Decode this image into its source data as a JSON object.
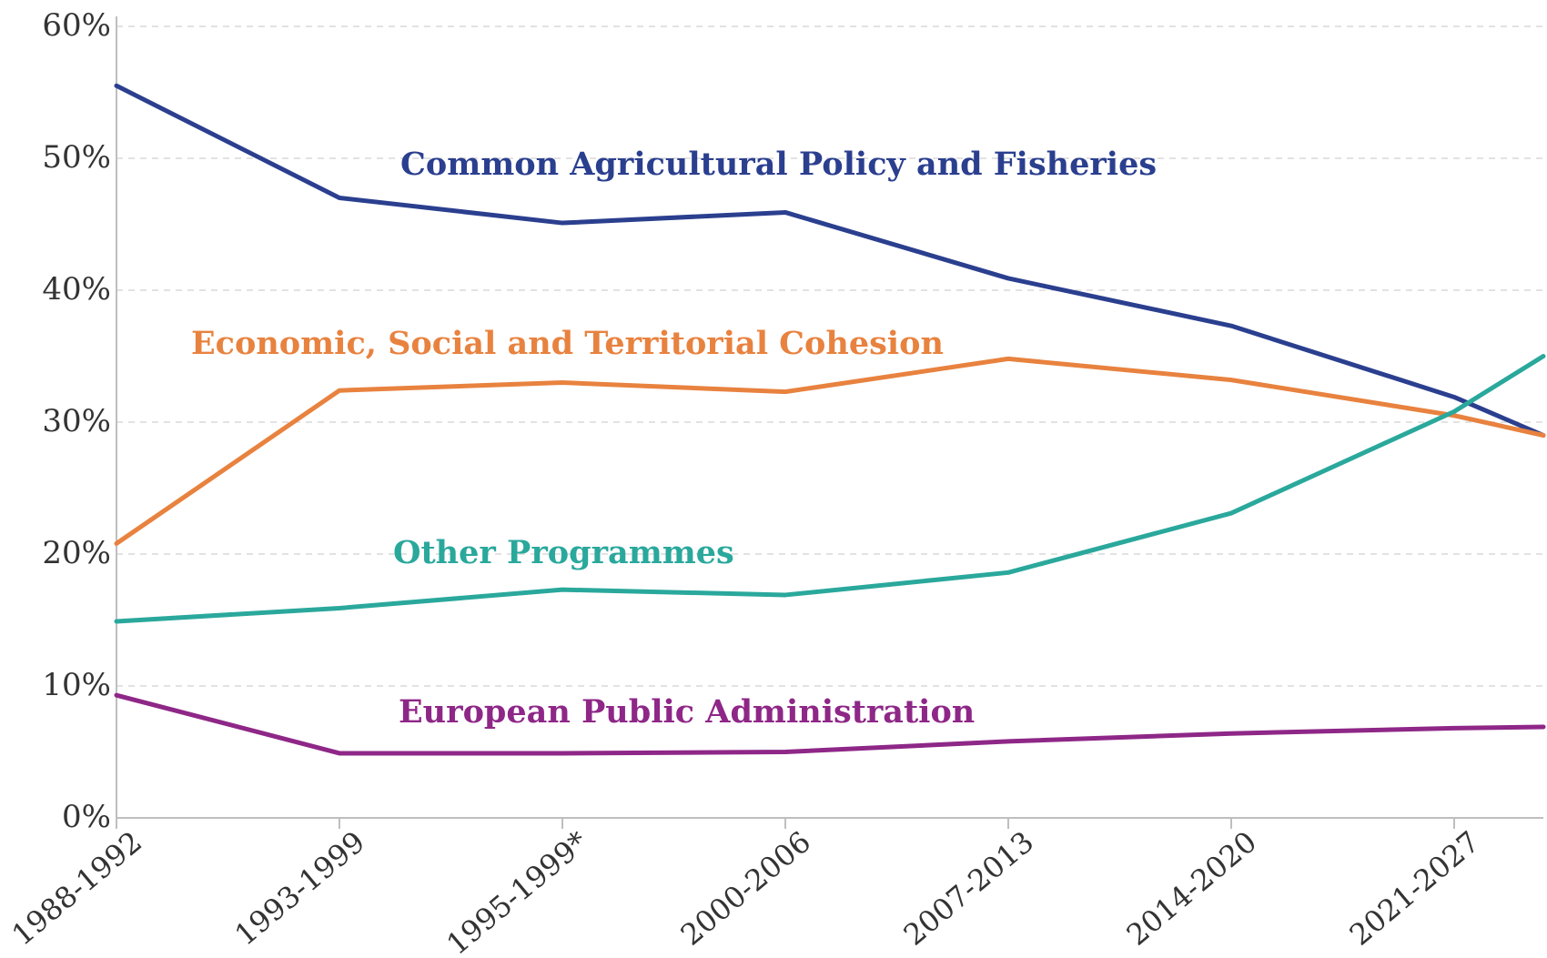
{
  "chart_data": {
    "type": "line",
    "title": "",
    "xlabel": "",
    "ylabel": "",
    "categories": [
      "1988-1992",
      "1993-1999",
      "1995-1999*",
      "2000-2006",
      "2007-2013",
      "2014-2020",
      "2021-2027"
    ],
    "y_ticks": [
      "0%",
      "10%",
      "20%",
      "30%",
      "40%",
      "50%",
      "60%"
    ],
    "ylim": [
      0,
      60
    ],
    "grid": true,
    "legend": "inline labels",
    "series": [
      {
        "name": "Common Agricultural Policy and Fisheries",
        "color": "#2b3f8f",
        "values": [
          55.5,
          47.0,
          45.1,
          45.9,
          40.9,
          37.3,
          31.9
        ],
        "end_value": 29.0
      },
      {
        "name": "Economic, Social and Territorial Cohesion",
        "color": "#e8823f",
        "values": [
          20.8,
          32.4,
          33.0,
          32.3,
          34.8,
          33.2,
          30.5
        ],
        "end_value": 29.0
      },
      {
        "name": "Other Programmes",
        "color": "#2aa89c",
        "values": [
          14.9,
          15.9,
          17.3,
          16.9,
          18.6,
          23.1,
          30.8
        ],
        "end_value": 35.0
      },
      {
        "name": "European Public Administration",
        "color": "#8e2787",
        "values": [
          9.3,
          4.9,
          4.9,
          5.0,
          5.8,
          6.4,
          6.8
        ],
        "end_value": 6.9
      }
    ]
  }
}
